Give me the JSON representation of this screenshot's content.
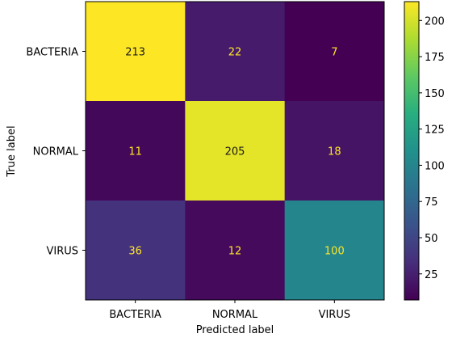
{
  "chart_data": {
    "type": "heatmap",
    "title": "",
    "xlabel": "Predicted label",
    "ylabel": "True label",
    "x_categories": [
      "BACTERIA",
      "NORMAL",
      "VIRUS"
    ],
    "y_categories": [
      "BACTERIA",
      "NORMAL",
      "VIRUS"
    ],
    "values": [
      [
        213,
        22,
        7
      ],
      [
        11,
        205,
        18
      ],
      [
        36,
        12,
        100
      ]
    ],
    "colormap": "viridis",
    "colorbar": {
      "range": [
        7,
        213
      ],
      "ticks": [
        25,
        50,
        75,
        100,
        125,
        150,
        175,
        200
      ]
    },
    "text_colors": {
      "on_dark": "#fde725",
      "on_light": "#1a1a1a"
    },
    "grid": false
  }
}
